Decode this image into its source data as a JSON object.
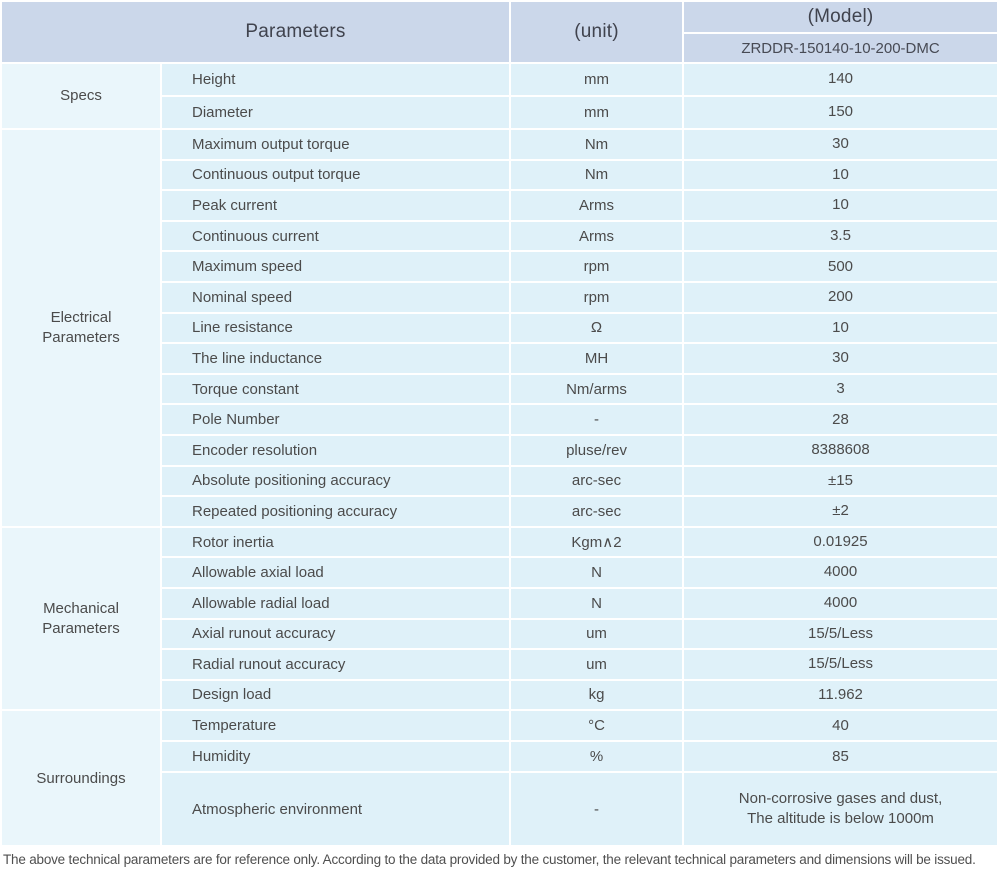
{
  "header": {
    "parameters_label": "Parameters",
    "unit_label": "(unit)",
    "model_label": "(Model)",
    "model_value": "ZRDDR-150140-10-200-DMC"
  },
  "colors": {
    "header_bg": "#cbd7ea",
    "cell_bg": "#dff1f9",
    "section_cell_bg": "#eaf6fb",
    "divider": "#ffffff",
    "text": "#4b4b4b"
  },
  "sections": [
    {
      "label": "Specs",
      "rows": [
        {
          "param": "Height",
          "unit": "mm",
          "value": "140"
        },
        {
          "param": "Diameter",
          "unit": "mm",
          "value": "150"
        }
      ]
    },
    {
      "label": "Electrical\nParameters",
      "rows": [
        {
          "param": "Maximum output torque",
          "unit": "Nm",
          "value": "30"
        },
        {
          "param": "Continuous output torque",
          "unit": "Nm",
          "value": "10"
        },
        {
          "param": "Peak current",
          "unit": "Arms",
          "value": "10"
        },
        {
          "param": "Continuous current",
          "unit": "Arms",
          "value": "3.5"
        },
        {
          "param": "Maximum speed",
          "unit": "rpm",
          "value": "500"
        },
        {
          "param": "Nominal speed",
          "unit": "rpm",
          "value": "200"
        },
        {
          "param": "Line resistance",
          "unit": "Ω",
          "value": "10"
        },
        {
          "param": "The line inductance",
          "unit": "MH",
          "value": "30"
        },
        {
          "param": "Torque constant",
          "unit": "Nm/arms",
          "value": "3"
        },
        {
          "param": "Pole Number",
          "unit": "-",
          "value": "28"
        },
        {
          "param": "Encoder resolution",
          "unit": "pluse/rev",
          "value": "8388608"
        },
        {
          "param": "Absolute positioning accuracy",
          "unit": "arc-sec",
          "value": "±15"
        },
        {
          "param": "Repeated positioning accuracy",
          "unit": "arc-sec",
          "value": "±2"
        }
      ]
    },
    {
      "label": "Mechanical\nParameters",
      "rows": [
        {
          "param": "Rotor inertia",
          "unit": "Kgm∧2",
          "value": "0.01925"
        },
        {
          "param": "Allowable axial load",
          "unit": "N",
          "value": "4000"
        },
        {
          "param": "Allowable radial load",
          "unit": "N",
          "value": "4000"
        },
        {
          "param": "Axial runout accuracy",
          "unit": "um",
          "value": "15/5/Less"
        },
        {
          "param": "Radial runout accuracy",
          "unit": "um",
          "value": "15/5/Less"
        },
        {
          "param": "Design load",
          "unit": "kg",
          "value": "11.962"
        }
      ]
    },
    {
      "label": "Surroundings",
      "rows": [
        {
          "param": "Temperature",
          "unit": "°C",
          "value": "40"
        },
        {
          "param": "Humidity",
          "unit": "%",
          "value": "85"
        },
        {
          "param": "Atmospheric environment",
          "unit": "-",
          "value": "Non-corrosive gases and dust,\nThe altitude is below 1000m"
        }
      ]
    }
  ],
  "footnote": "The above technical parameters are for reference only. According to the data provided by the customer, the relevant technical parameters and dimensions will be issued."
}
